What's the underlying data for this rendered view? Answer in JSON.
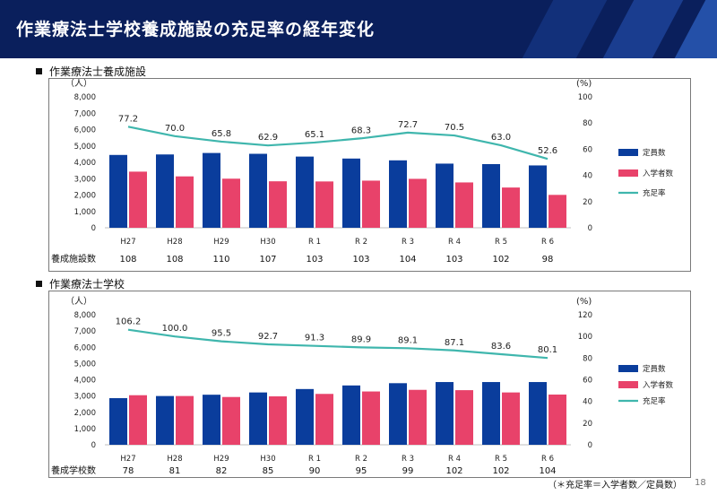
{
  "page": {
    "title": "作業療法士学校養成施設の充足率の経年変化",
    "footnote": "（＊充足率＝入学者数／定員数）",
    "page_number": "18"
  },
  "colors": {
    "header_bg": "#0a1f5c",
    "capacity": "#0a3d9c",
    "enrolled": "#e8426a",
    "rate": "#3fb6ad"
  },
  "chart_data": [
    {
      "type": "bar",
      "title": "作業療法士養成施設",
      "categories": [
        "H27",
        "H28",
        "H29",
        "H30",
        "R 1",
        "R 2",
        "R 3",
        "R 4",
        "R 5",
        "R 6"
      ],
      "series": [
        {
          "name": "定員数",
          "type": "bar",
          "axis": "left",
          "values": [
            4450,
            4480,
            4570,
            4520,
            4350,
            4230,
            4120,
            3920,
            3890,
            3810
          ]
        },
        {
          "name": "入学者数",
          "type": "bar",
          "axis": "left",
          "values": [
            3430,
            3140,
            3000,
            2840,
            2830,
            2880,
            2990,
            2770,
            2460,
            2010
          ]
        },
        {
          "name": "充足率",
          "type": "line",
          "axis": "right",
          "values": [
            77.2,
            70.0,
            65.8,
            62.9,
            65.1,
            68.3,
            72.7,
            70.5,
            63.0,
            52.6
          ]
        }
      ],
      "rate_labels": [
        "77.2",
        "70.0",
        "65.8",
        "62.9",
        "65.1",
        "68.3",
        "72.7",
        "70.5",
        "63.0",
        "52.6"
      ],
      "ylabel_left": "（人）",
      "ylabel_right": "(%)",
      "ylim_left": [
        0,
        8000
      ],
      "ylim_right": [
        0,
        100
      ],
      "yticks_left": [
        "0",
        "1,000",
        "2,000",
        "3,000",
        "4,000",
        "5,000",
        "6,000",
        "7,000",
        "8,000"
      ],
      "yticks_right": [
        "0",
        "20",
        "40",
        "60",
        "80",
        "100"
      ],
      "count_label": "養成施設数",
      "counts": [
        "108",
        "108",
        "110",
        "107",
        "103",
        "103",
        "104",
        "103",
        "102",
        "98"
      ],
      "legend_position": "right"
    },
    {
      "type": "bar",
      "title": "作業療法士学校",
      "categories": [
        "H27",
        "H28",
        "H29",
        "H30",
        "R 1",
        "R 2",
        "R 3",
        "R 4",
        "R 5",
        "R 6"
      ],
      "series": [
        {
          "name": "定員数",
          "type": "bar",
          "axis": "left",
          "values": [
            2870,
            3000,
            3080,
            3220,
            3430,
            3650,
            3790,
            3860,
            3860,
            3860
          ]
        },
        {
          "name": "入学者数",
          "type": "bar",
          "axis": "left",
          "values": [
            3050,
            3000,
            2940,
            2980,
            3130,
            3280,
            3380,
            3360,
            3220,
            3090
          ]
        },
        {
          "name": "充足率",
          "type": "line",
          "axis": "right",
          "values": [
            106.2,
            100.0,
            95.5,
            92.7,
            91.3,
            89.9,
            89.1,
            87.1,
            83.6,
            80.1
          ]
        }
      ],
      "rate_labels": [
        "106.2",
        "100.0",
        "95.5",
        "92.7",
        "91.3",
        "89.9",
        "89.1",
        "87.1",
        "83.6",
        "80.1"
      ],
      "ylabel_left": "（人）",
      "ylabel_right": "(%)",
      "ylim_left": [
        0,
        8000
      ],
      "ylim_right": [
        0,
        120
      ],
      "yticks_left": [
        "0",
        "1,000",
        "2,000",
        "3,000",
        "4,000",
        "5,000",
        "6,000",
        "7,000",
        "8,000"
      ],
      "yticks_right": [
        "0",
        "20",
        "40",
        "60",
        "80",
        "100",
        "120"
      ],
      "count_label": "養成学校数",
      "counts": [
        "78",
        "81",
        "82",
        "85",
        "90",
        "95",
        "99",
        "102",
        "102",
        "104"
      ],
      "legend_position": "right"
    }
  ]
}
